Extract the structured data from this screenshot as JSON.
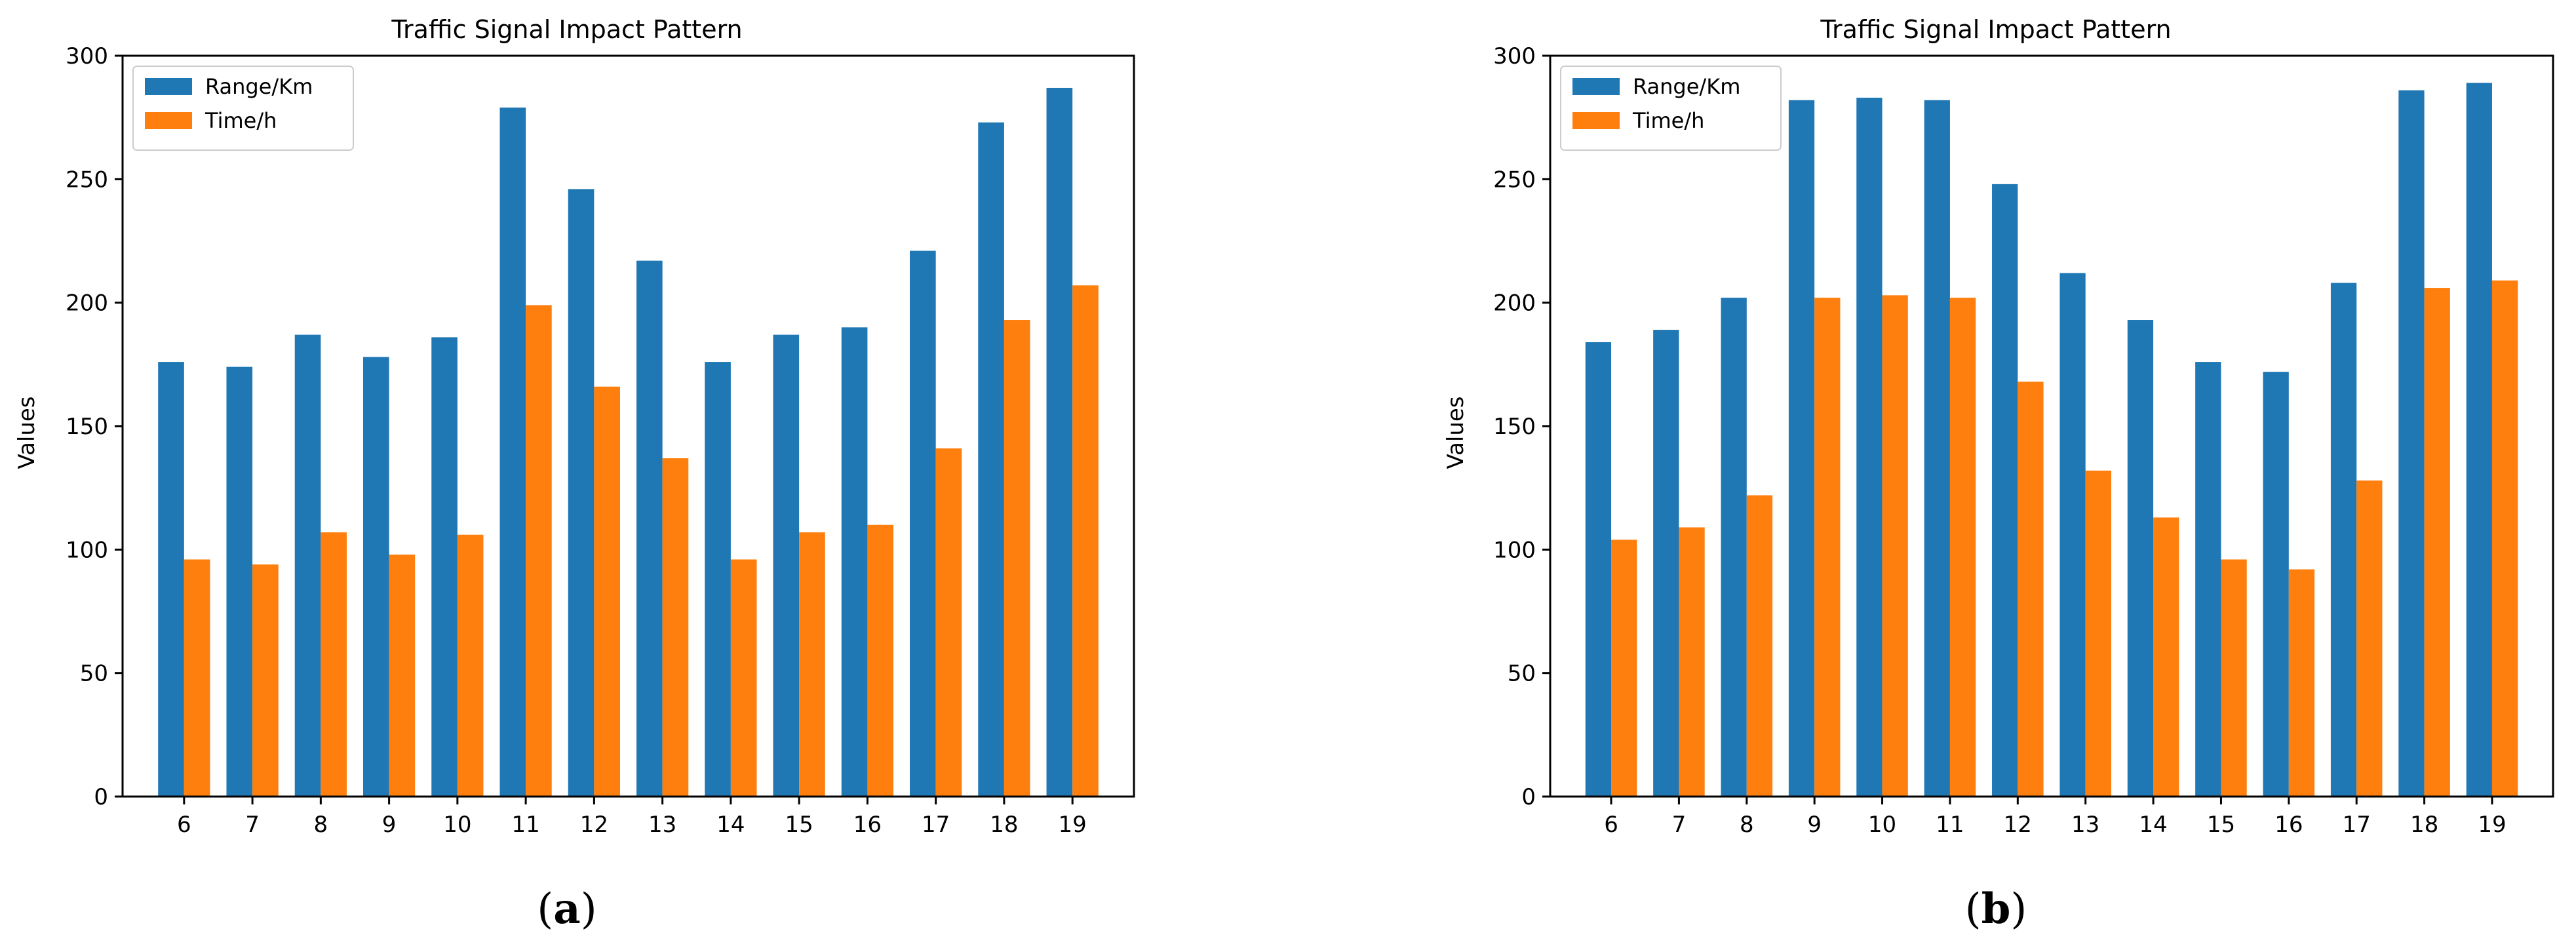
{
  "chart_data": [
    {
      "type": "bar",
      "title": "Traffic Signal Impact Pattern",
      "xlabel": "",
      "ylabel": "Values",
      "ylim": [
        0,
        300
      ],
      "yticks": [
        0,
        50,
        100,
        150,
        200,
        250,
        300
      ],
      "legend_position": "top-left",
      "grid": false,
      "caption_open": "(",
      "caption_letter": "a",
      "caption_close": ")",
      "categories": [
        "6",
        "7",
        "8",
        "9",
        "10",
        "11",
        "12",
        "13",
        "14",
        "15",
        "16",
        "17",
        "18",
        "19"
      ],
      "series": [
        {
          "name": "Range/Km",
          "color": "#1f77b4",
          "values": [
            176,
            174,
            187,
            178,
            186,
            279,
            246,
            217,
            176,
            187,
            190,
            221,
            273,
            287
          ]
        },
        {
          "name": "Time/h",
          "color": "#ff7f0e",
          "values": [
            96,
            94,
            107,
            98,
            106,
            199,
            166,
            137,
            96,
            107,
            110,
            141,
            193,
            207
          ]
        }
      ]
    },
    {
      "type": "bar",
      "title": "Traffic Signal Impact Pattern",
      "xlabel": "",
      "ylabel": "Values",
      "ylim": [
        0,
        300
      ],
      "yticks": [
        0,
        50,
        100,
        150,
        200,
        250,
        300
      ],
      "legend_position": "top-left",
      "grid": false,
      "caption_open": "(",
      "caption_letter": "b",
      "caption_close": ")",
      "categories": [
        "6",
        "7",
        "8",
        "9",
        "10",
        "11",
        "12",
        "13",
        "14",
        "15",
        "16",
        "17",
        "18",
        "19"
      ],
      "series": [
        {
          "name": "Range/Km",
          "color": "#1f77b4",
          "values": [
            184,
            189,
            202,
            282,
            283,
            282,
            248,
            212,
            193,
            176,
            172,
            208,
            286,
            289
          ]
        },
        {
          "name": "Time/h",
          "color": "#ff7f0e",
          "values": [
            104,
            109,
            122,
            202,
            203,
            202,
            168,
            132,
            113,
            96,
            92,
            128,
            206,
            209
          ]
        }
      ]
    }
  ]
}
